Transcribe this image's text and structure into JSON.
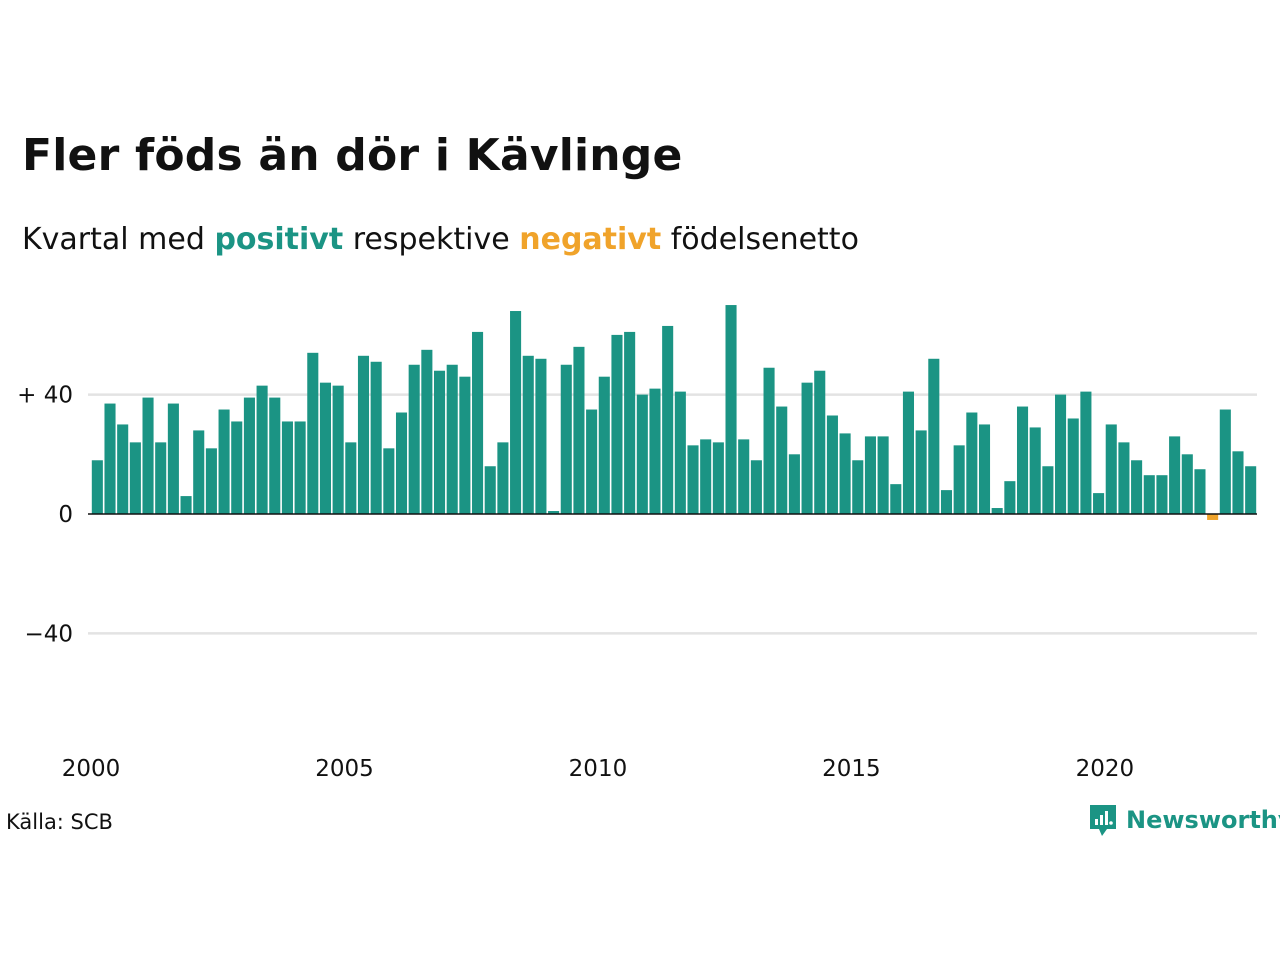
{
  "header": {
    "title": "Fler föds än dör i Kävlinge",
    "subtitle_prefix": "Kvartal med",
    "subtitle_positive": "positivt",
    "subtitle_middle": "respektive",
    "subtitle_negative": "negativt",
    "subtitle_suffix": "födelsenetto"
  },
  "footer": {
    "source": "Källa: SCB",
    "brand": "Newsworthy"
  },
  "colors": {
    "positive": "#1b9484",
    "negative": "#f0a32a",
    "grid": "#e3e3e3",
    "axis": "#111111"
  },
  "chart_data": {
    "type": "bar",
    "title": "Fler föds än dör i Kävlinge",
    "subtitle": "Kvartal med positivt respektive negativt födelsenetto",
    "xlabel": "",
    "ylabel": "",
    "x_start": 2000,
    "quarters_per_year": 4,
    "x_ticks": [
      "2000",
      "2005",
      "2010",
      "2015",
      "2020"
    ],
    "y_ticks": [
      {
        "value": 40,
        "label": "+ 40"
      },
      {
        "value": 0,
        "label": "0"
      },
      {
        "value": -40,
        "label": "−40"
      }
    ],
    "ylim": [
      -60,
      75
    ],
    "grid": true,
    "values": [
      18,
      37,
      30,
      24,
      39,
      24,
      37,
      6,
      28,
      22,
      35,
      31,
      39,
      43,
      39,
      31,
      31,
      54,
      44,
      43,
      24,
      53,
      51,
      22,
      34,
      50,
      55,
      48,
      50,
      46,
      61,
      16,
      24,
      68,
      53,
      52,
      1,
      50,
      56,
      35,
      46,
      60,
      61,
      40,
      42,
      63,
      41,
      23,
      25,
      24,
      70,
      25,
      18,
      49,
      36,
      20,
      44,
      48,
      33,
      27,
      18,
      26,
      26,
      10,
      41,
      28,
      52,
      8,
      23,
      34,
      30,
      2,
      11,
      36,
      29,
      16,
      40,
      32,
      41,
      7,
      30,
      24,
      18,
      13,
      13,
      26,
      20,
      15,
      -2,
      35,
      21,
      16
    ]
  }
}
